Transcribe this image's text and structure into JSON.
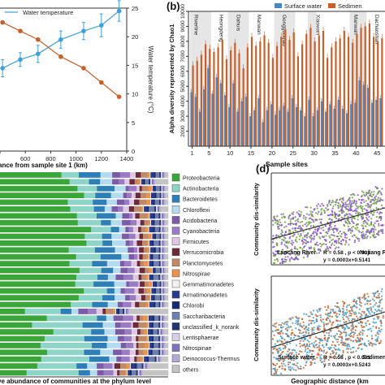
{
  "chart_data": [
    {
      "type": "line",
      "legend": {
        "entries": [
          "Water temperature"
        ],
        "placement": "top-left"
      },
      "xlabel": "ance from sample site 1 (km)",
      "ylabel_right": "Water temperature (°C)",
      "x_ticks": [
        "400",
        "600",
        "800",
        "1000",
        "1200",
        "1400"
      ],
      "y_right_ticks": [
        "0",
        "5",
        "10",
        "15",
        "20",
        "25"
      ],
      "xlim": [
        400,
        1400
      ],
      "ylim_right": [
        0,
        25
      ],
      "series": [
        {
          "name": "Water temperature",
          "color": "#3f9fd6",
          "x": [
            420,
            560,
            700,
            880,
            1060,
            1200,
            1340
          ],
          "y": [
            14.5,
            16.0,
            17.0,
            19.5,
            21.0,
            22.0,
            24.5
          ],
          "err": [
            1.5,
            1.2,
            1.5,
            1.5,
            1.5,
            2.0,
            1.8
          ]
        },
        {
          "name": "",
          "color": "#c8602a",
          "x": [
            420,
            560,
            700,
            880,
            1060,
            1200,
            1340
          ],
          "y": [
            22.5,
            21.0,
            19.5,
            16.5,
            14.5,
            12.0,
            9.5
          ]
        }
      ]
    },
    {
      "type": "bar",
      "panel_label": "(b)",
      "legend": {
        "entries": [
          "Surface water",
          "Sedimen"
        ],
        "placement": "top"
      },
      "ylabel": "Alpha diversity represented by Chao1",
      "xlabel": "Sample sites",
      "y_ticks": [
        "2000",
        "3000",
        "4000",
        "5000",
        "6000",
        "7000",
        "8000",
        "9000",
        "10000"
      ],
      "ylim": [
        1000,
        10000
      ],
      "x_ticks": [
        "1",
        "5",
        "10",
        "15",
        "20",
        "25",
        "30",
        "35",
        "40",
        "45"
      ],
      "section_labels": [
        "Riverline",
        "Heongdeng",
        "Dahuis",
        "Manwan",
        "Gongguoqiao",
        "Xiaowan",
        "Manwan",
        "Dachaoshan"
      ],
      "colors": {
        "surface": "#4b86c4",
        "sediment": "#c8602a"
      },
      "surface": [
        4600,
        4300,
        3300,
        4800,
        6200,
        4500,
        5600,
        5200,
        4400,
        3600,
        5200,
        3300,
        4000,
        4300,
        3000,
        3400,
        4200,
        2600,
        3400,
        3800,
        3100,
        3400,
        3700,
        3300,
        4200,
        3600,
        3400,
        3000,
        4100,
        3000,
        3400,
        4000,
        3300,
        3800,
        3500,
        4100,
        3500,
        3200,
        3800,
        3900,
        5400,
        5100,
        4900,
        3900,
        4100,
        4200
      ],
      "sediment": [
        6400,
        6700,
        7100,
        7800,
        7500,
        7300,
        7600,
        8100,
        6800,
        7400,
        7900,
        7200,
        6200,
        7600,
        8300,
        7700,
        8000,
        8400,
        7900,
        6900,
        7700,
        8300,
        8800,
        8100,
        8600,
        7000,
        7800,
        8500,
        8900,
        8000,
        8400,
        8700,
        6900,
        7600,
        8000,
        8200,
        8700,
        8300,
        7900,
        8500,
        8900,
        9000,
        9200,
        8300,
        8000,
        8200
      ]
    },
    {
      "type": "bar",
      "stacked": true,
      "xlabel": "ve abundance of communities at the phylum level",
      "legend": {
        "placement": "right",
        "entries": [
          {
            "name": "Proteobacteria",
            "color": "#3aa63a"
          },
          {
            "name": "Actinobacteria",
            "color": "#8fd4c8"
          },
          {
            "name": "Bacteroidetes",
            "color": "#2e7fb8"
          },
          {
            "name": "Chloroflexi",
            "color": "#b4dcee"
          },
          {
            "name": "Acidobacteria",
            "color": "#7b5aa6"
          },
          {
            "name": "Cyanobacteria",
            "color": "#9a7cc4"
          },
          {
            "name": "Firmicutes",
            "color": "#e0c8e4"
          },
          {
            "name": "Verrucomicrobia",
            "color": "#6b2b3a"
          },
          {
            "name": "Planctomycetes",
            "color": "#c08a68"
          },
          {
            "name": "Nitrospirae",
            "color": "#e89450"
          },
          {
            "name": "Gemmatimonadetes",
            "color": "#f5f0f0"
          },
          {
            "name": "Armatimonadetes",
            "color": "#2a3a8a"
          },
          {
            "name": "Chlorobi",
            "color": "#162a6e"
          },
          {
            "name": "Saccharibacteria",
            "color": "#6f7fae"
          },
          {
            "name": "unclassified_k_norank",
            "color": "#23356e"
          },
          {
            "name": "Lentisphaerae",
            "color": "#d8cfe8"
          },
          {
            "name": "Nitrospinae",
            "color": "#7a74b8"
          },
          {
            "name": "Deinococcus-Thermus",
            "color": "#b3a8d6"
          },
          {
            "name": "others",
            "color": "#c4c4c4"
          }
        ]
      }
    },
    {
      "type": "scatter",
      "panel_label": "(d)",
      "ylabel": "Community dis-similarity",
      "xlabel": "Geographic distance (km",
      "top": {
        "legend": [
          "Lancang River",
          "Nujiang Riv"
        ],
        "colors": {
          "lancang": "#8a4fd6",
          "nujiang": "#6aa33a"
        },
        "stat1": "R = 0.58 , p < 0.001",
        "stat2": "y = 0.0003x+0.5141",
        "y_ticks": [
          "0.3",
          "0.4",
          "0.5",
          "0.6",
          "0.7",
          "0.8",
          "0.9"
        ]
      },
      "bottom": {
        "legend": [
          "Surface water",
          "Sedimen"
        ],
        "colors": {
          "surface": "#3f9fd6",
          "sediment": "#c8602a"
        },
        "stat1": "R = 0.58 , p < 0.001",
        "stat2": "y = 0.0003x+0.5243",
        "y_ticks": [
          "0.3",
          "0.4",
          "0.5",
          "0.6",
          "0.7",
          "0.8",
          "0.9"
        ]
      },
      "x_ticks": [
        "0",
        "200",
        "400",
        "600",
        "800",
        "1000"
      ]
    }
  ]
}
